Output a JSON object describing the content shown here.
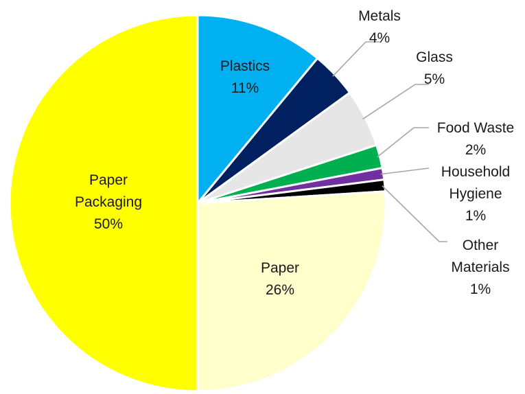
{
  "chart_data": {
    "type": "pie",
    "slices": [
      {
        "name": "Plastics",
        "value": 11,
        "label": "11%",
        "color": "#00b0f0",
        "text_color": "#1a1a1a"
      },
      {
        "name": "Metals",
        "value": 4,
        "label": "4%",
        "color": "#002060",
        "text_color": "#1a1a1a"
      },
      {
        "name": "Glass",
        "value": 5,
        "label": "5%",
        "color": "#e7e6e6",
        "text_color": "#1a1a1a"
      },
      {
        "name": "Food Waste",
        "value": 2,
        "label": "2%",
        "color": "#00b050",
        "text_color": "#1a1a1a"
      },
      {
        "name": "Household Hygiene",
        "value": 1,
        "label": "1%",
        "color": "#7030a0",
        "text_color": "#1a1a1a"
      },
      {
        "name": "Other Materials",
        "value": 1,
        "label": "1%",
        "color": "#000000",
        "text_color": "#1a1a1a"
      },
      {
        "name": "Paper",
        "value": 26,
        "label": "26%",
        "color": "#ffffcc",
        "text_color": "#1a1a1a"
      },
      {
        "name": "Paper Packaging",
        "value": 50,
        "label": "50%",
        "color": "#ffff00",
        "text_color": "#1a1a1a"
      }
    ]
  }
}
